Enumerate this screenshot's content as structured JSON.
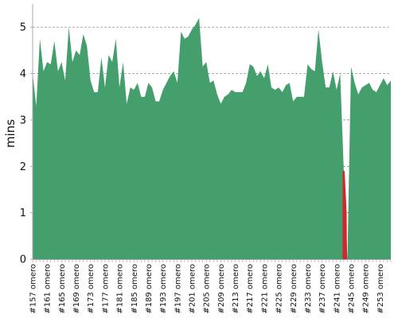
{
  "chart_data": {
    "type": "area",
    "ylabel": "mins",
    "xlabel": "",
    "title": "",
    "ylim": [
      0,
      5.5
    ],
    "y_ticks": [
      0,
      1,
      2,
      3,
      4,
      5
    ],
    "y_tick_labels": [
      "0",
      "1",
      "2",
      "3",
      "4",
      "5"
    ],
    "grid": "horizontal dashed",
    "x_tick_labels": [
      "#157 omero",
      "#161 omero",
      "#165 omero",
      "#169 omero",
      "#173 omero",
      "#177 omero",
      "#181 omero",
      "#185 omero",
      "#189 omero",
      "#193 omero",
      "#197 omero",
      "#201 omero",
      "#205 omero",
      "#209 omero",
      "#213 omero",
      "#217 omero",
      "#221 omero",
      "#225 omero",
      "#229 omero",
      "#233 omero",
      "#237 omero",
      "#241 omero",
      "#245 omero",
      "#249 omero",
      "#253 omero"
    ],
    "x_start": 157,
    "x_end": 256,
    "colors": {
      "success": "#459f6d",
      "failure": "#d0272f",
      "grid": "#7a7a7a",
      "axis": "#aaaaaa"
    },
    "series": [
      {
        "values": [
          4.0,
          3.3,
          4.75,
          4.05,
          4.25,
          4.2,
          4.7,
          4.05,
          4.25,
          3.85,
          5.0,
          4.25,
          4.5,
          4.4,
          4.85,
          4.6,
          3.85,
          3.6,
          3.6,
          4.35,
          3.7,
          4.4,
          4.25,
          4.75,
          3.7,
          4.25,
          3.35,
          3.7,
          3.65,
          3.8,
          3.5,
          3.5,
          3.8,
          3.7,
          3.4,
          3.4,
          3.65,
          3.8,
          3.95,
          4.05,
          3.8,
          4.9,
          4.75,
          4.8,
          4.95,
          5.05,
          5.2,
          4.15,
          4.25,
          3.8,
          3.85,
          3.55,
          3.35,
          3.5,
          3.55,
          3.65,
          3.6,
          3.6,
          3.6,
          3.8,
          4.2,
          4.15,
          3.95,
          4.05,
          3.9,
          4.2,
          3.7,
          3.65,
          3.7,
          3.6,
          3.75,
          3.8,
          3.4,
          3.5,
          3.5,
          3.5,
          4.2,
          4.1,
          4.05,
          4.95,
          4.25,
          3.7,
          3.7,
          4.05,
          3.65,
          4.0,
          1.9,
          0.0,
          4.15,
          3.8,
          3.55,
          3.7,
          3.75,
          3.8,
          3.65,
          3.6,
          3.75,
          3.9,
          3.75,
          3.85
        ],
        "failed_builds": [
          243,
          244
        ]
      }
    ]
  }
}
